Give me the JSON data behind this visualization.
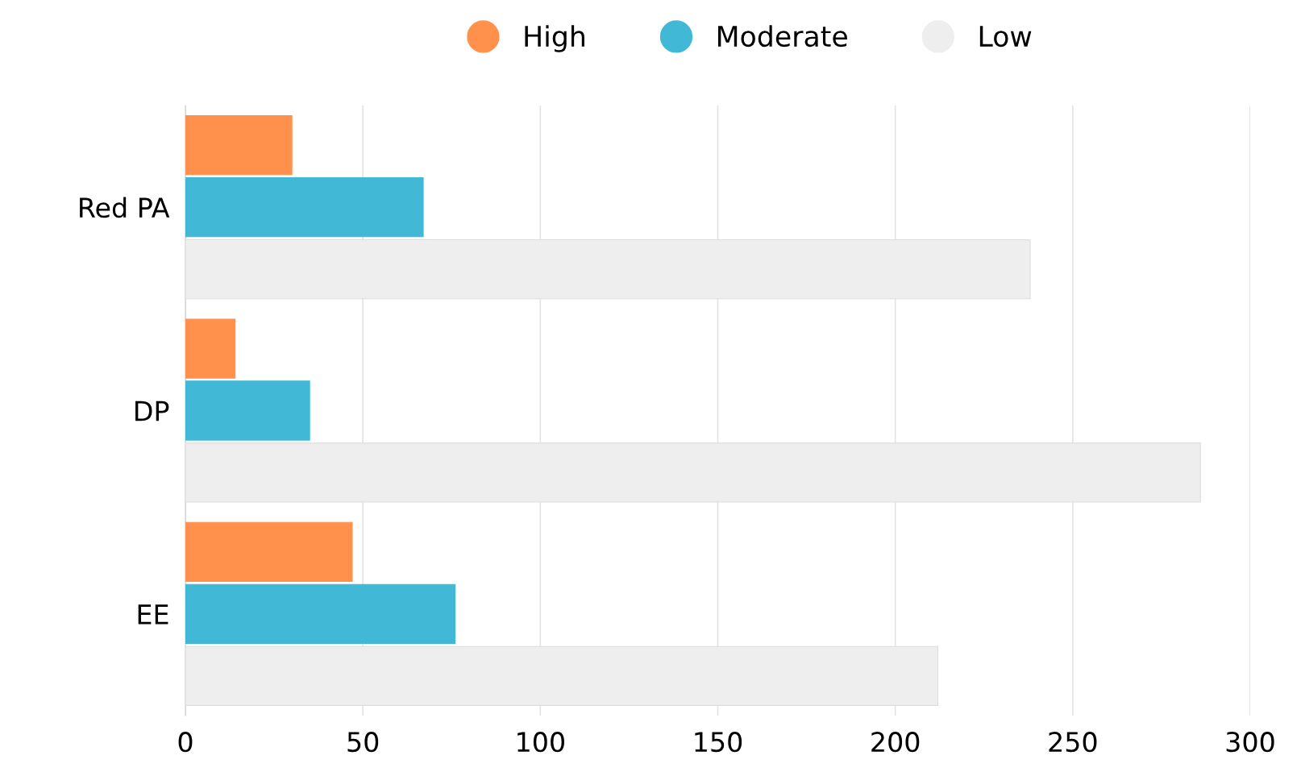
{
  "chart_data": {
    "type": "bar",
    "orientation": "horizontal",
    "categories": [
      "Red PA",
      "DP",
      "EE"
    ],
    "series": [
      {
        "name": "High",
        "color": "#ff914d",
        "values": [
          30,
          14,
          47
        ]
      },
      {
        "name": "Moderate",
        "color": "#41b8d5",
        "values": [
          67,
          35,
          76
        ]
      },
      {
        "name": "Low",
        "color": "#eeeeee",
        "values": [
          238,
          286,
          212
        ]
      }
    ],
    "xlim": [
      0,
      300
    ],
    "xticks": [
      0,
      50,
      100,
      150,
      200,
      250,
      300
    ],
    "grid": "x",
    "legend": "top"
  }
}
